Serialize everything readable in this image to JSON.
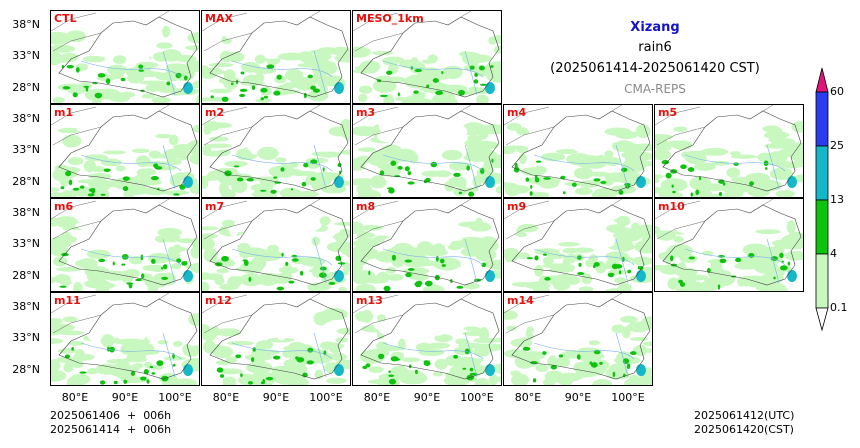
{
  "header": {
    "region": "Xizang",
    "variable": "rain6",
    "period": "(2025061414-2025061420 CST)",
    "system": "CMA-REPS"
  },
  "members": [
    "CTL",
    "MAX",
    "MESO_1km",
    "m1",
    "m2",
    "m3",
    "m4",
    "m5",
    "m6",
    "m7",
    "m8",
    "m9",
    "m10",
    "m11",
    "m12",
    "m13",
    "m14"
  ],
  "axes": {
    "lat_labels": [
      "38°N",
      "33°N",
      "28°N"
    ],
    "lon_labels": [
      "80°E",
      "90°E",
      "100°E"
    ]
  },
  "footer": {
    "init_utc": "2025061406  +  006h",
    "init_cst": "2025061414  +  006h",
    "valid_utc": "2025061412(UTC)",
    "valid_cst": "2025061420(CST)"
  },
  "colorbar": {
    "levels": [
      "60",
      "25",
      "13",
      "4",
      "0.1"
    ],
    "colors": [
      "#e0147a",
      "#2a3cf0",
      "#14b8c8",
      "#0cc40c",
      "#c8f8c0",
      "#ffffff"
    ]
  }
}
